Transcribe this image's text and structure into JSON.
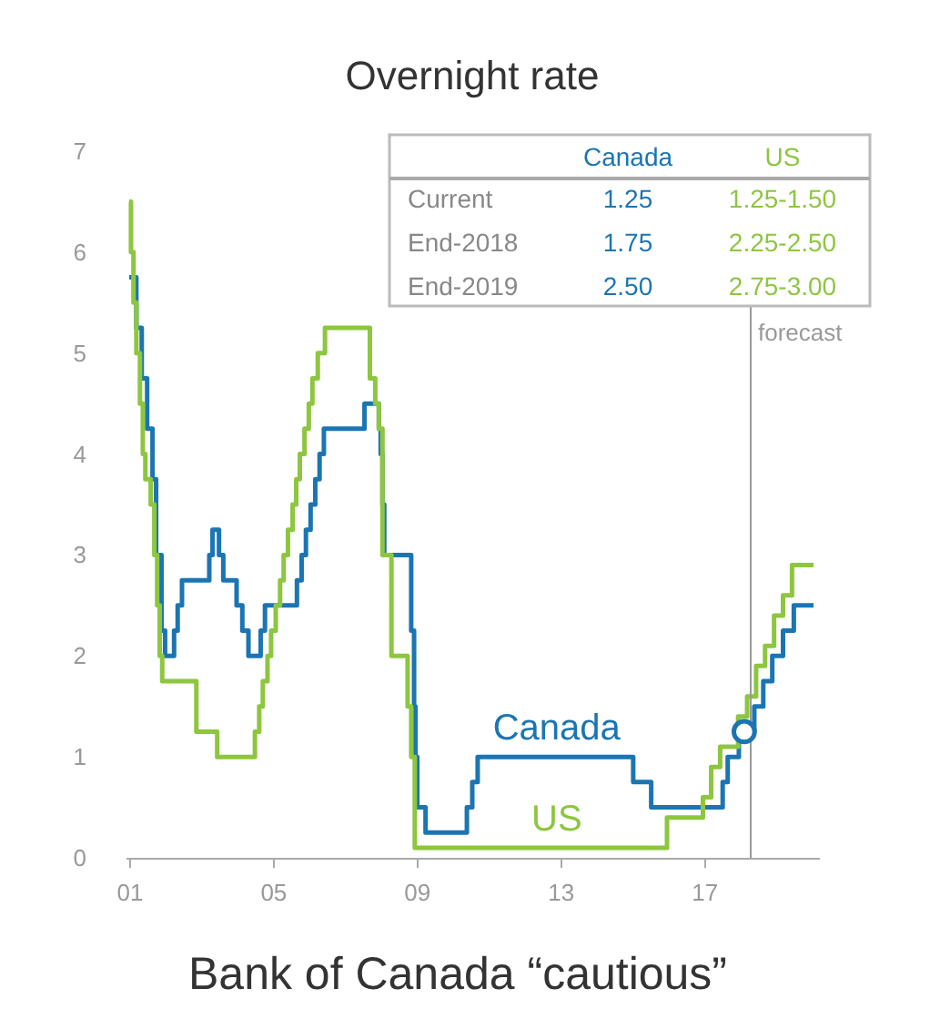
{
  "chart_data": {
    "type": "step",
    "title": "Overnight rate",
    "annotations": [
      "Current",
      "1.25",
      "1.25-1.50",
      "End-2018",
      "1.75",
      "2.25-2.50",
      "End-2019",
      "2.50",
      "2.75-3.00",
      "Bank of Canada “cautious”"
    ],
    "xlim": [
      2000.9,
      2020.2
    ],
    "xticks": [
      {
        "value": 2001,
        "label": "01"
      },
      {
        "value": 2005,
        "label": "05"
      },
      {
        "value": 2009,
        "label": "09"
      },
      {
        "value": 2013,
        "label": "13"
      },
      {
        "value": 2017,
        "label": "17"
      }
    ],
    "ylim": [
      0,
      7
    ],
    "yticks": [
      0,
      1,
      2,
      3,
      4,
      5,
      6,
      7
    ],
    "ref_lines": [
      {
        "axis": "x",
        "value": 2018.3,
        "label": "forecast",
        "color": "#999999"
      }
    ],
    "series": [
      {
        "name": "Canada",
        "color": "#1b75b3",
        "x": [
          2001.0,
          2001.2,
          2001.35,
          2001.5,
          2001.65,
          2001.75,
          2001.9,
          2002.0,
          2002.25,
          2002.35,
          2002.47,
          2003.23,
          2003.32,
          2003.5,
          2003.62,
          2003.99,
          2004.15,
          2004.32,
          2004.66,
          2004.78,
          2005.67,
          2005.8,
          2005.92,
          2006.05,
          2006.18,
          2006.3,
          2006.42,
          2007.55,
          2007.95,
          2008.0,
          2008.05,
          2008.1,
          2008.85,
          2008.93,
          2008.97,
          2009.02,
          2009.25,
          2010.4,
          2010.55,
          2010.7,
          2015.03,
          2015.53,
          2017.52,
          2017.66,
          2017.97,
          2018.4,
          2018.65,
          2018.9,
          2019.2,
          2019.5,
          2020.05
        ],
        "values": [
          5.75,
          5.25,
          4.75,
          4.25,
          3.75,
          3.0,
          2.25,
          2.0,
          2.25,
          2.5,
          2.75,
          3.0,
          3.25,
          3.0,
          2.75,
          2.5,
          2.25,
          2.0,
          2.25,
          2.5,
          2.75,
          3.0,
          3.25,
          3.5,
          3.75,
          4.0,
          4.25,
          4.5,
          4.25,
          4.0,
          3.5,
          3.0,
          2.25,
          1.5,
          1.0,
          0.5,
          0.25,
          0.5,
          0.75,
          1.0,
          0.75,
          0.5,
          0.75,
          1.0,
          1.25,
          1.5,
          1.75,
          2.0,
          2.25,
          2.5,
          2.5
        ]
      },
      {
        "name": "US",
        "color": "#8dc63f",
        "x": [
          2001.0,
          2001.05,
          2001.12,
          2001.2,
          2001.3,
          2001.38,
          2001.45,
          2001.6,
          2001.7,
          2001.78,
          2001.85,
          2001.92,
          2002.87,
          2003.45,
          2004.5,
          2004.62,
          2004.72,
          2004.85,
          2004.95,
          2005.08,
          2005.2,
          2005.3,
          2005.42,
          2005.55,
          2005.65,
          2005.75,
          2005.88,
          2006.0,
          2006.1,
          2006.25,
          2006.45,
          2007.7,
          2007.85,
          2007.95,
          2008.05,
          2008.3,
          2008.75,
          2008.85,
          2008.95,
          2015.97,
          2016.97,
          2017.2,
          2017.45,
          2017.95,
          2018.2,
          2018.45,
          2018.7,
          2018.95,
          2019.2,
          2019.45,
          2020.05
        ],
        "values": [
          6.5,
          6.0,
          5.5,
          5.0,
          4.5,
          4.0,
          3.75,
          3.5,
          3.0,
          2.5,
          2.0,
          1.75,
          1.25,
          1.0,
          1.25,
          1.5,
          1.75,
          2.0,
          2.25,
          2.5,
          2.75,
          3.0,
          3.25,
          3.5,
          3.75,
          4.0,
          4.25,
          4.5,
          4.75,
          5.0,
          5.25,
          4.75,
          4.5,
          4.25,
          3.0,
          2.0,
          1.5,
          1.0,
          0.1,
          0.4,
          0.6,
          0.9,
          1.1,
          1.4,
          1.6,
          1.9,
          2.1,
          2.4,
          2.6,
          2.9,
          2.9
        ]
      },
      {
        "type": "scatter",
        "color": "#1b75b3",
        "marker": "circle",
        "x": [
          2018.12
        ],
        "values": [
          1.25
        ]
      }
    ]
  }
}
